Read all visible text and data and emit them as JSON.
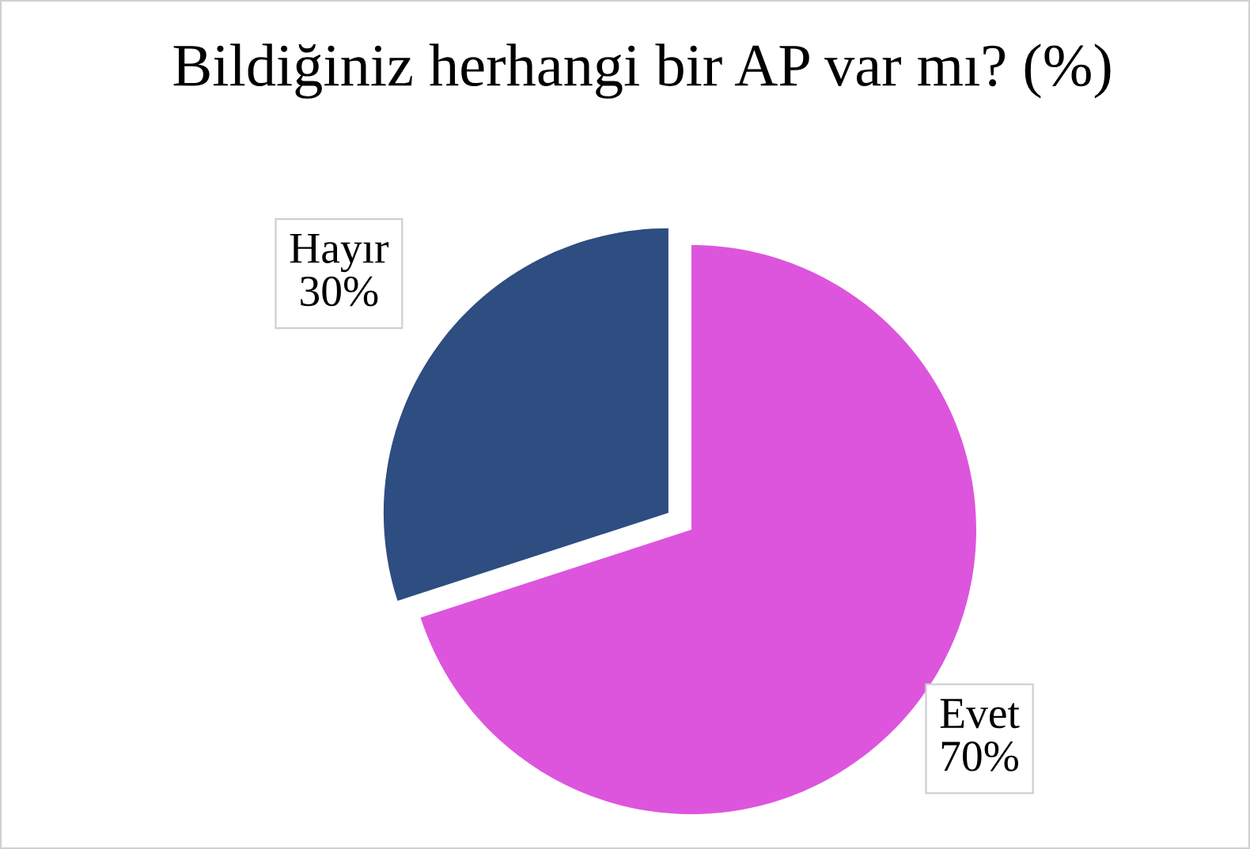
{
  "chart_data": {
    "type": "pie",
    "title": "Bildiğiniz herhangi bir AP var mı? (%)",
    "categories": [
      "Evet",
      "Hayır"
    ],
    "values": [
      70,
      30
    ],
    "colors": [
      "#dd55dd",
      "#2e4d80"
    ],
    "value_labels": [
      "70%",
      "30%"
    ]
  }
}
